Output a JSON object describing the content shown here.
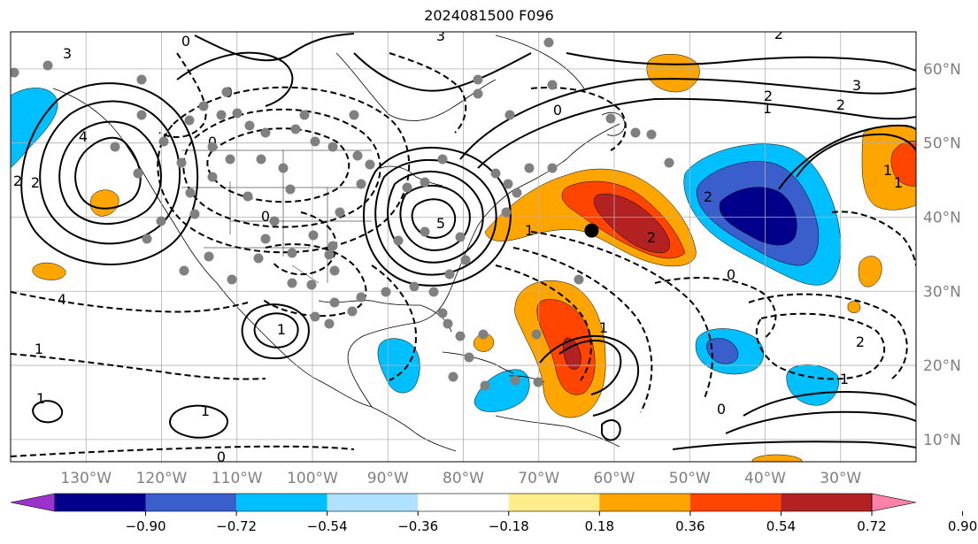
{
  "figure": {
    "title": "2024081500 F096"
  },
  "map": {
    "projection": "equirectangular",
    "extent": {
      "lon_min": -140,
      "lon_max": -20,
      "lat_min": 7,
      "lat_max": 65
    },
    "gridlines": true,
    "lon_ticks": [
      "130°W",
      "120°W",
      "110°W",
      "100°W",
      "90°W",
      "80°W",
      "70°W",
      "60°W",
      "50°W",
      "40°W",
      "30°W"
    ],
    "lat_ticks": [
      "60°N",
      "50°N",
      "40°N",
      "30°N",
      "20°N",
      "10°N"
    ],
    "contour_labels": [
      "0",
      "0",
      "0",
      "0",
      "0",
      "0",
      "0",
      "0",
      "1",
      "1",
      "1",
      "1",
      "1",
      "1",
      "1",
      "1",
      "1",
      "1",
      "2",
      "2",
      "2",
      "2",
      "2",
      "2",
      "2",
      "2",
      "3",
      "3",
      "3",
      "4",
      "5",
      "4"
    ],
    "marker": {
      "lon": -63,
      "lat": 38.2,
      "color": "#000000"
    },
    "station_dots_color": "#808080"
  },
  "colorbar": {
    "tick_labels": [
      "−0.90",
      "−0.72",
      "−0.54",
      "−0.36",
      "−0.18",
      "0.18",
      "0.36",
      "0.54",
      "0.72",
      "0.90"
    ],
    "colors": [
      "#9a32cd",
      "#00008b",
      "#3a5fcd",
      "#00bfff",
      "#b0e2ff",
      "#ffffff",
      "#ffec8b",
      "#ffa500",
      "#ff4500",
      "#b22222",
      "#ff82ab"
    ],
    "extend": "both"
  }
}
